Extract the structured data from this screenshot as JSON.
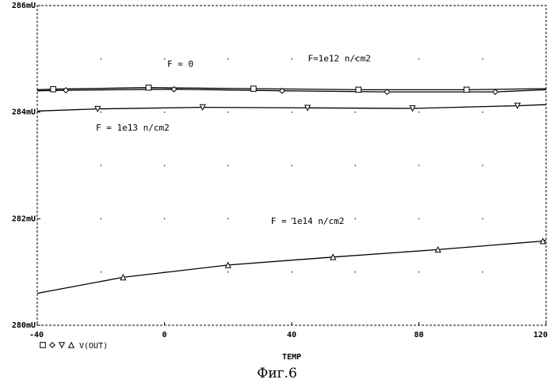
{
  "chart_data": {
    "type": "line",
    "xlabel": "TEMP",
    "ylabel": "",
    "xlim": [
      -40,
      120
    ],
    "ylim": [
      280,
      286
    ],
    "x_ticks": [
      -40,
      0,
      40,
      80,
      120
    ],
    "y_ticks": [
      280,
      282,
      284,
      286
    ],
    "x_tick_labels": [
      "-40",
      "0",
      "40",
      "80",
      "120"
    ],
    "y_tick_labels": [
      "280mU",
      "282mU",
      "284mU",
      "286mU"
    ],
    "grid": "dotted",
    "legend": {
      "placement": "below-left",
      "text": "V(OUT)",
      "markers": [
        "square",
        "diamond",
        "triangle-down",
        "triangle-up"
      ]
    },
    "series": [
      {
        "marker": "square",
        "x": [
          -40,
          -35,
          -5,
          28,
          61,
          95,
          120
        ],
        "y": [
          284.42,
          284.43,
          284.46,
          284.44,
          284.42,
          284.42,
          284.44
        ]
      },
      {
        "marker": "diamond",
        "x": [
          -40,
          -31,
          3,
          37,
          70,
          104,
          120
        ],
        "y": [
          284.4,
          284.41,
          284.43,
          284.4,
          284.38,
          284.38,
          284.42
        ]
      },
      {
        "marker": "triangle-down",
        "x": [
          -40,
          -21,
          12,
          45,
          78,
          111,
          120
        ],
        "y": [
          284.02,
          284.06,
          284.09,
          284.08,
          284.07,
          284.12,
          284.14
        ]
      },
      {
        "marker": "triangle-up",
        "x": [
          -40,
          -13,
          20,
          53,
          86,
          119,
          120
        ],
        "y": [
          280.6,
          280.9,
          281.13,
          281.28,
          281.42,
          281.58,
          281.6
        ]
      }
    ],
    "annotations": [
      {
        "text": "F = 0",
        "x": 5,
        "y": 284.85
      },
      {
        "text": "F=1e12 n/cm2",
        "x": 55,
        "y": 284.95
      },
      {
        "text": "F = 1e13 n/cm2",
        "x": -10,
        "y": 283.65
      },
      {
        "text": "F = 1e14 n/cm2",
        "x": 45,
        "y": 281.9
      }
    ]
  },
  "caption": "Фиг.6"
}
